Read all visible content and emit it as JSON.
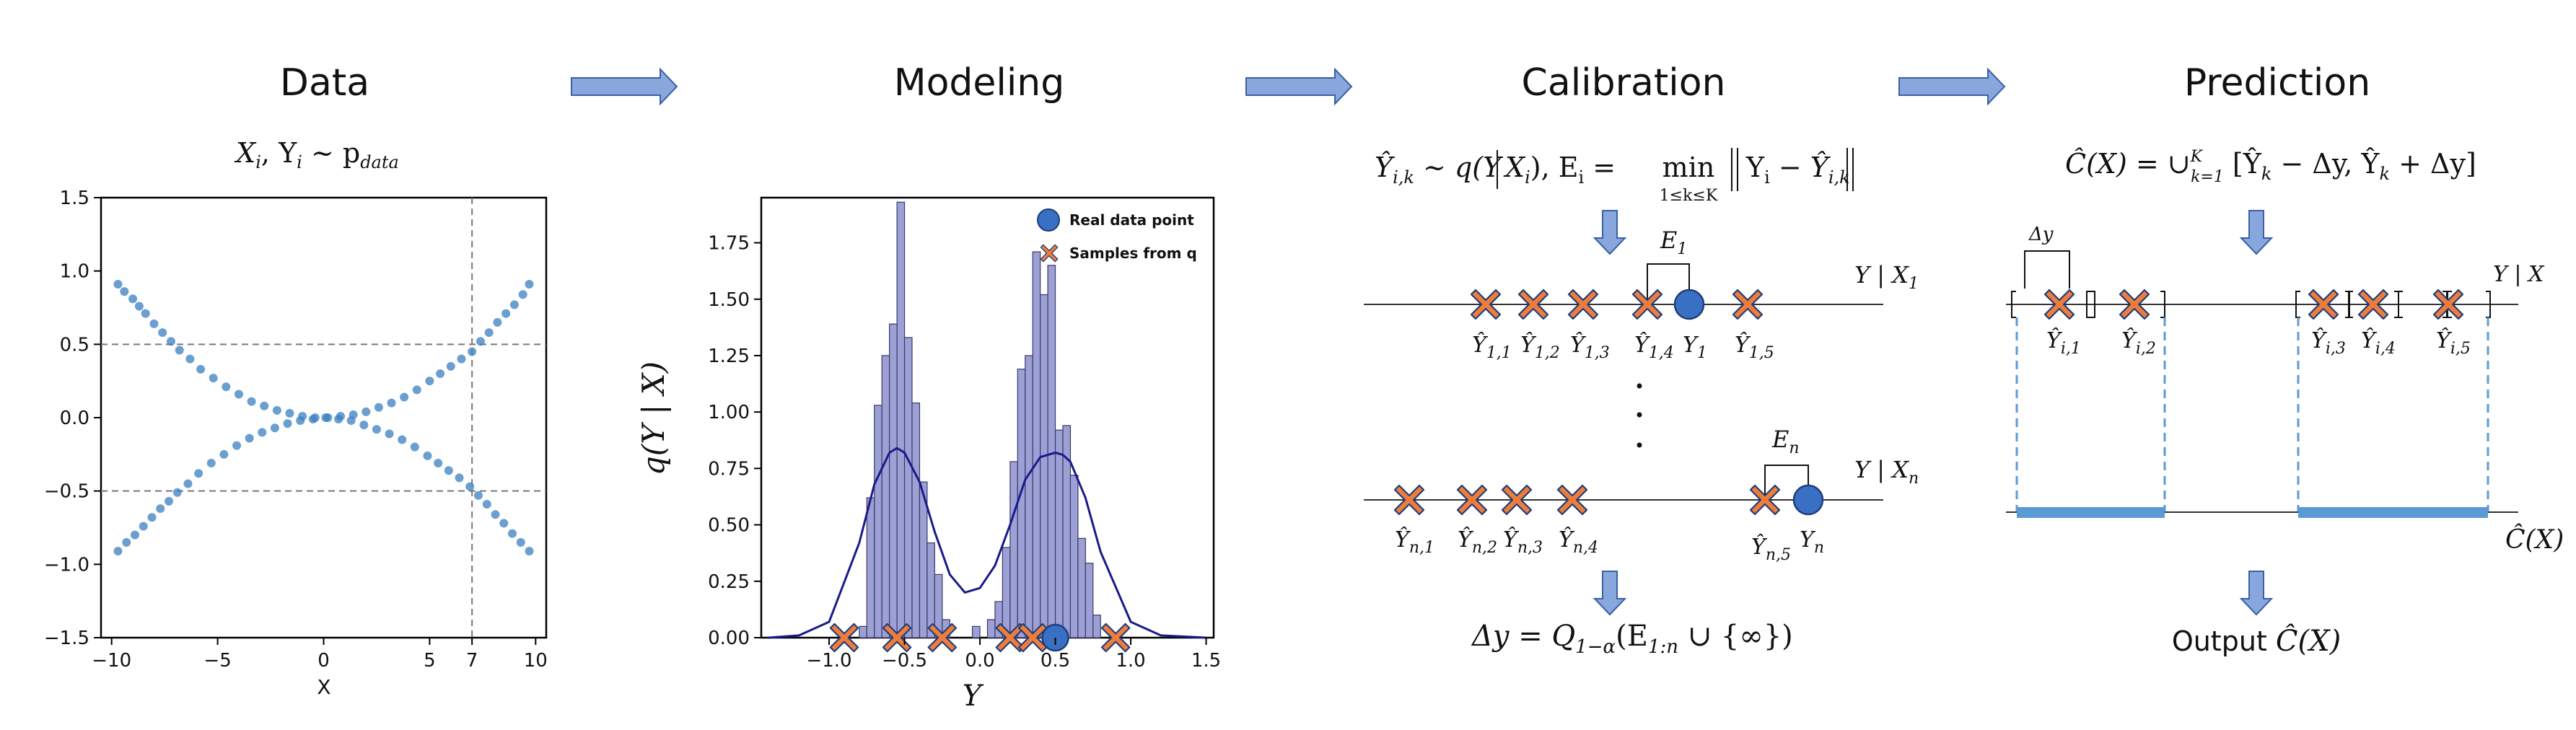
{
  "colors": {
    "arrow_fill": "#88a8dd",
    "arrow_stroke": "#3a5fa8",
    "scatter": "#3a7fc0",
    "hist_fill": "#9da0d4",
    "hist_stroke": "#3a3a6a",
    "kde": "#1a1a8a",
    "real_point": "#3a70c4",
    "sample_fill": "#ee7d3c",
    "sample_stroke": "#1f3d7a",
    "interval": "#5b9bd5"
  },
  "stages": {
    "data": {
      "title": "Data",
      "formula_lhs": "X",
      "formula_i1": "i",
      "formula_mid": ", Y",
      "formula_i2": "i",
      "formula_sim": " ~ p",
      "formula_sub": "data"
    },
    "modeling": {
      "title": "Modeling"
    },
    "calibration": {
      "title": "Calibration"
    },
    "prediction": {
      "title": "Prediction"
    }
  },
  "scatter_chart": {
    "xlabel": "X",
    "xticks": [
      "−10",
      "−5",
      "0",
      "5",
      "7",
      "10"
    ],
    "yticks": [
      "1.5",
      "1.0",
      "0.5",
      "0.0",
      "−0.5",
      "−1.0",
      "−1.5"
    ],
    "vline_x": 7,
    "hlines": [
      0.5,
      -0.5
    ]
  },
  "chart_data": [
    {
      "type": "scatter",
      "title": "",
      "xlabel": "X",
      "ylabel": "",
      "xlim": [
        -10.5,
        10.5
      ],
      "ylim": [
        -1.5,
        1.5
      ],
      "x_ticks": [
        -10,
        -5,
        0,
        5,
        7,
        10
      ],
      "y_ticks": [
        -1.5,
        -1.0,
        -0.5,
        0.0,
        0.5,
        1.0,
        1.5
      ],
      "series": [
        {
          "name": "upper branch",
          "x": [
            -9.7,
            -9.4,
            -9.0,
            -8.7,
            -8.4,
            -8.0,
            -7.6,
            -7.2,
            -6.8,
            -6.3,
            -5.8,
            -5.2,
            -4.6,
            -4.0,
            -3.4,
            -2.8,
            -2.2,
            -1.6,
            -1.0,
            -0.4,
            0.2,
            0.8,
            1.4,
            2.0,
            2.6,
            3.2,
            3.8,
            4.4,
            5.0,
            5.5,
            6.0,
            6.5,
            7.0,
            7.4,
            7.8,
            8.2,
            8.6,
            9.0,
            9.4,
            9.7
          ],
          "y": [
            0.91,
            0.86,
            0.81,
            0.76,
            0.71,
            0.64,
            0.58,
            0.52,
            0.46,
            0.4,
            0.33,
            0.27,
            0.21,
            0.16,
            0.11,
            0.08,
            0.05,
            0.03,
            0.01,
            0.0,
            0.0,
            0.01,
            0.02,
            0.04,
            0.07,
            0.1,
            0.14,
            0.19,
            0.25,
            0.3,
            0.35,
            0.4,
            0.45,
            0.52,
            0.58,
            0.65,
            0.71,
            0.77,
            0.84,
            0.91
          ]
        },
        {
          "name": "lower branch",
          "x": [
            -9.7,
            -9.3,
            -8.9,
            -8.5,
            -8.1,
            -7.7,
            -7.3,
            -6.9,
            -6.4,
            -5.9,
            -5.3,
            -4.7,
            -4.1,
            -3.5,
            -2.9,
            -2.3,
            -1.7,
            -1.1,
            -0.5,
            0.1,
            0.7,
            1.3,
            1.9,
            2.5,
            3.1,
            3.7,
            4.3,
            4.9,
            5.4,
            5.9,
            6.4,
            6.9,
            7.3,
            7.7,
            8.1,
            8.5,
            8.9,
            9.3,
            9.7
          ],
          "y": [
            -0.91,
            -0.85,
            -0.8,
            -0.74,
            -0.68,
            -0.62,
            -0.57,
            -0.51,
            -0.45,
            -0.38,
            -0.31,
            -0.25,
            -0.19,
            -0.14,
            -0.1,
            -0.07,
            -0.04,
            -0.02,
            -0.01,
            0.0,
            -0.01,
            -0.02,
            -0.05,
            -0.08,
            -0.11,
            -0.15,
            -0.2,
            -0.26,
            -0.31,
            -0.36,
            -0.41,
            -0.47,
            -0.53,
            -0.59,
            -0.66,
            -0.72,
            -0.79,
            -0.85,
            -0.91
          ]
        }
      ]
    },
    {
      "type": "bar",
      "title": "",
      "xlabel": "Y",
      "ylabel": "q(Y | X)",
      "xlim": [
        -1.45,
        1.55
      ],
      "ylim": [
        0,
        1.95
      ],
      "x_ticks": [
        -1.0,
        -0.5,
        0.0,
        0.5,
        1.0,
        1.5
      ],
      "y_ticks": [
        0.0,
        0.25,
        0.5,
        0.75,
        1.0,
        1.25,
        1.5,
        1.75
      ],
      "bin_width": 0.05,
      "bins_left": [
        -0.8,
        -0.75,
        -0.7,
        -0.65,
        -0.6,
        -0.55,
        -0.5,
        -0.45,
        -0.4,
        -0.35,
        -0.3,
        -0.25,
        -0.05,
        0.05,
        0.1,
        0.15,
        0.2,
        0.25,
        0.3,
        0.35,
        0.4,
        0.45,
        0.5,
        0.55,
        0.6,
        0.65,
        0.7,
        0.75
      ],
      "values": [
        0.05,
        0.62,
        1.03,
        1.25,
        1.39,
        1.93,
        1.33,
        1.04,
        0.69,
        0.42,
        0.28,
        0.08,
        0.05,
        0.08,
        0.16,
        0.4,
        0.78,
        1.19,
        1.25,
        1.71,
        1.52,
        1.65,
        0.92,
        0.94,
        0.72,
        0.44,
        0.33,
        0.1
      ],
      "kde": {
        "x": [
          -1.4,
          -1.2,
          -1.0,
          -0.8,
          -0.7,
          -0.6,
          -0.55,
          -0.5,
          -0.4,
          -0.3,
          -0.2,
          -0.1,
          0.0,
          0.1,
          0.2,
          0.3,
          0.4,
          0.5,
          0.55,
          0.6,
          0.7,
          0.8,
          1.0,
          1.2,
          1.5
        ],
        "y": [
          0.0,
          0.01,
          0.07,
          0.42,
          0.68,
          0.82,
          0.84,
          0.82,
          0.69,
          0.47,
          0.28,
          0.2,
          0.22,
          0.32,
          0.5,
          0.7,
          0.8,
          0.82,
          0.81,
          0.78,
          0.62,
          0.38,
          0.07,
          0.01,
          0.0
        ]
      },
      "real_point": 0.5,
      "samples": [
        -0.9,
        -0.55,
        -0.25,
        0.2,
        0.35,
        0.9
      ],
      "legend": [
        "Real data point",
        "Samples from q"
      ]
    }
  ],
  "hist_chart": {
    "xlabel": "Y",
    "ylabel": "q(Y | X)",
    "xticks": [
      "−1.0",
      "−0.5",
      "0.0",
      "0.5",
      "1.0",
      "1.5"
    ],
    "yticks": [
      "0.00",
      "0.25",
      "0.50",
      "0.75",
      "1.00",
      "1.25",
      "1.50",
      "1.75"
    ],
    "legend_real": "Real data point",
    "legend_samples": "Samples from q"
  },
  "calibration": {
    "formula_a": "Ŷ",
    "formula_a_sub": "i,k",
    "formula_b": " ~ q(Y",
    "formula_c": "X",
    "formula_c_sub": "i",
    "formula_d": "), E",
    "formula_d_sub": "i",
    "formula_e": " = ",
    "formula_min": "min",
    "formula_min_sub": "1≤k≤K",
    "formula_f": "Y",
    "formula_f_sub": "i",
    "formula_g": " − Ŷ",
    "formula_g_sub": "i,k",
    "row1_label": "Y | X",
    "row1_label_sub": "1",
    "row1_err": "E",
    "row1_err_sub": "1",
    "row1_points": [
      {
        "base": "Ŷ",
        "sub": "1,1"
      },
      {
        "base": "Ŷ",
        "sub": "1,2"
      },
      {
        "base": "Ŷ",
        "sub": "1,3"
      },
      {
        "base": "Ŷ",
        "sub": "1,4"
      },
      {
        "base": "Y",
        "sub": "1"
      },
      {
        "base": "Ŷ",
        "sub": "1,5"
      }
    ],
    "rown_label": "Y | X",
    "rown_label_sub": "n",
    "rown_err": "E",
    "rown_err_sub": "n",
    "rown_points": [
      {
        "base": "Ŷ",
        "sub": "n,1"
      },
      {
        "base": "Ŷ",
        "sub": "n,2"
      },
      {
        "base": "Ŷ",
        "sub": "n,3"
      },
      {
        "base": "Ŷ",
        "sub": "n,4"
      },
      {
        "base": "Ŷ",
        "sub": "n,5"
      },
      {
        "base": "Y",
        "sub": "n"
      }
    ],
    "result_lhs": "Δy = Q",
    "result_sub": "1−α",
    "result_arg": "(E",
    "result_arg_sub": "1:n",
    "result_rest": " ∪ {∞})"
  },
  "prediction": {
    "formula_a": "Ĉ(X) = ∪",
    "formula_sup": "K",
    "formula_sub": "k=1",
    "formula_b": " [Ŷ",
    "formula_b_sub": "k",
    "formula_c": " − Δy, Ŷ",
    "formula_c_sub": "k",
    "formula_d": " + Δy]",
    "delta_label": "Δy",
    "row_label": "Y | X",
    "points": [
      {
        "base": "Ŷ",
        "sub": "i,1"
      },
      {
        "base": "Ŷ",
        "sub": "i,2"
      },
      {
        "base": "Ŷ",
        "sub": "i,3"
      },
      {
        "base": "Ŷ",
        "sub": "i,4"
      },
      {
        "base": "Ŷ",
        "sub": "i,5"
      }
    ],
    "set_label": "Ĉ(X)",
    "output_word": "Output ",
    "output_math": "Ĉ(X)"
  }
}
